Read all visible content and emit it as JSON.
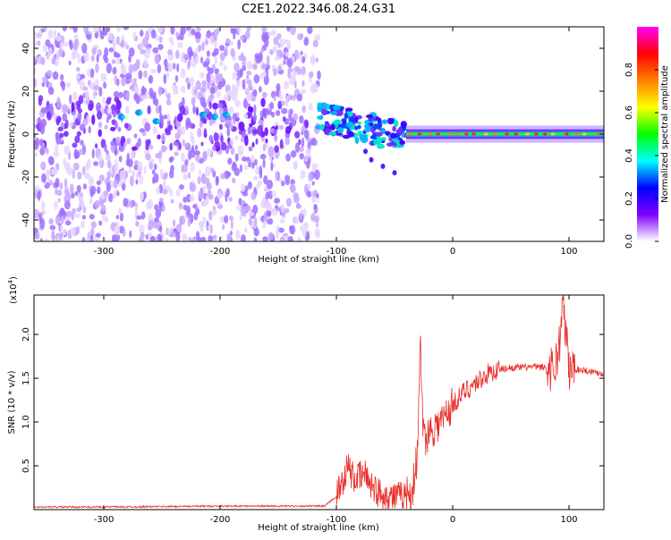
{
  "title": "C2E1.2022.346.08.24.G31",
  "chart_data": [
    {
      "type": "heatmap",
      "xlabel": "Height of straight line (km)",
      "ylabel": "Frequency (Hz)",
      "xlim": [
        -360,
        130
      ],
      "ylim": [
        -50,
        50
      ],
      "xticks": [
        -300,
        -200,
        -100,
        0,
        100
      ],
      "yticks": [
        -40,
        -20,
        0,
        20,
        40
      ],
      "colorbar": {
        "label": "Normalized spectral amplitude",
        "range": [
          0.0,
          1.0
        ],
        "ticks": [
          "0.0",
          "0.2",
          "0.4",
          "0.6",
          "0.8"
        ],
        "tick_values": [
          0.0,
          0.2,
          0.4,
          0.6,
          0.8
        ],
        "colors": [
          "#ffffff",
          "#8000ff",
          "#0000ff",
          "#00ffff",
          "#00ff00",
          "#ffff00",
          "#ff8000",
          "#ff0000",
          "#ff00ff"
        ]
      },
      "regions": [
        {
          "x": [
            -360,
            -115
          ],
          "freq": [
            -50,
            50
          ],
          "amplitude": 0.25
        },
        {
          "x": [
            -115,
            -40
          ],
          "freq": [
            -20,
            10
          ],
          "amplitude": 0.45
        },
        {
          "x": [
            -40,
            130
          ],
          "freq": [
            -2,
            2
          ],
          "amplitude": 0.8
        }
      ],
      "grid": false
    },
    {
      "type": "line",
      "xlabel": "Height of straight line (km)",
      "ylabel": "SNR (10 * v/v)",
      "multiplier_label": "(x10",
      "multiplier_exp": "4",
      "multiplier_close": ")",
      "xlim": [
        -360,
        130
      ],
      "ylim": [
        0,
        2.45
      ],
      "xticks": [
        -300,
        -200,
        -100,
        0,
        100
      ],
      "yticks": [
        0.5,
        1.0,
        1.5,
        2.0
      ],
      "ytick_labels": [
        "0.5",
        "1.0",
        "1.5",
        "2.0"
      ],
      "series_color": "#e8302a",
      "x": [
        -360,
        -300,
        -200,
        -110,
        -100,
        -90,
        -85,
        -75,
        -65,
        -55,
        -45,
        -35,
        -30,
        -28,
        -25,
        -20,
        -10,
        0,
        10,
        20,
        30,
        40,
        50,
        70,
        85,
        90,
        95,
        100,
        110,
        130
      ],
      "values": [
        0.03,
        0.03,
        0.04,
        0.04,
        0.15,
        0.5,
        0.35,
        0.4,
        0.2,
        0.15,
        0.15,
        0.2,
        0.65,
        1.95,
        0.8,
        0.9,
        1.0,
        1.2,
        1.35,
        1.45,
        1.55,
        1.6,
        1.62,
        1.63,
        1.62,
        1.7,
        2.35,
        1.6,
        1.6,
        1.55
      ],
      "grid": false
    }
  ]
}
